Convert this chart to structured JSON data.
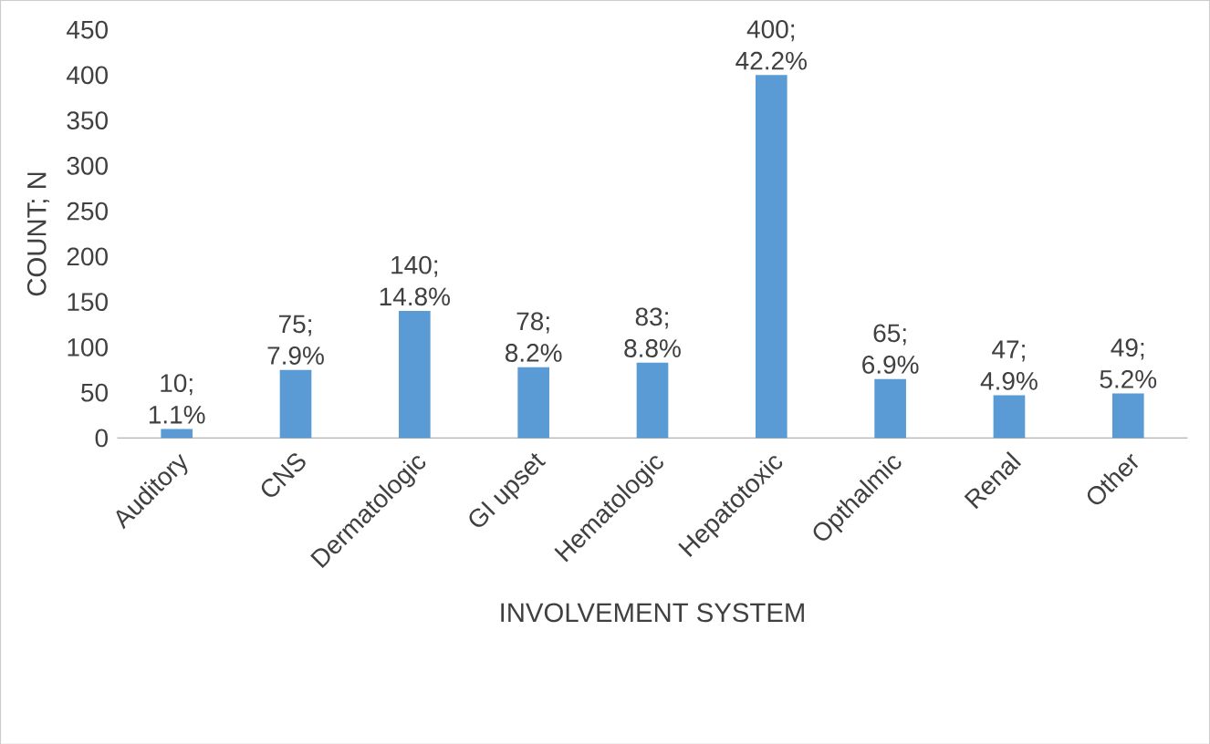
{
  "chart_data": {
    "type": "bar",
    "xlabel": "INVOLVEMENT SYSTEM",
    "ylabel": "COUNT; N",
    "categories": [
      "Auditory",
      "CNS",
      "Dermatologic",
      "GI upset",
      "Hematologic",
      "Hepatotoxic",
      "Opthalmic",
      "Renal",
      "Other"
    ],
    "values": [
      10,
      75,
      140,
      78,
      83,
      400,
      65,
      47,
      49
    ],
    "value_labels": [
      "10; 1.1%",
      "75; 7.9%",
      "140; 14.8%",
      "78; 8.2%",
      "83; 8.8%",
      "400; 42.2%",
      "65; 6.9%",
      "47; 4.9%",
      "49; 5.2%"
    ],
    "color": "#5b9bd5",
    "ylim": [
      0,
      450
    ],
    "yticks": [
      0,
      50,
      100,
      150,
      200,
      250,
      300,
      350,
      400,
      450
    ]
  }
}
